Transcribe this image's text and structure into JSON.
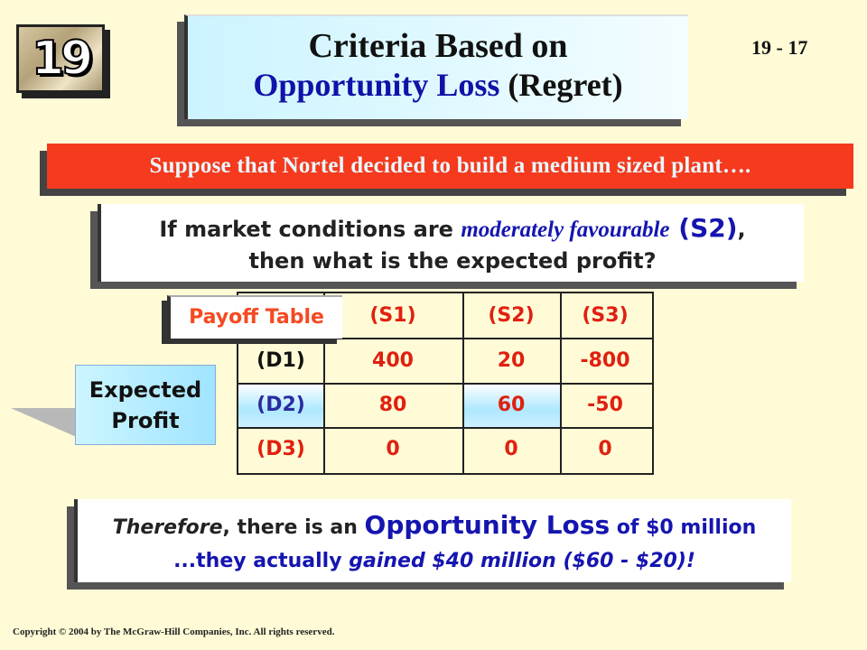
{
  "badge": {
    "chapter": "19"
  },
  "title": {
    "line1": "Criteria Based on",
    "line2_blue": "Opportunity Loss",
    "line2_dark": " (Regret)"
  },
  "slide_number": "19 - 17",
  "banner": "Suppose that Nortel decided to build a medium sized plant….",
  "question": {
    "l1_a": "If market conditions are ",
    "l1_italic": "moderately favourable",
    "l1_s2": " (S2)",
    "l1_end": ",",
    "l2": "then what is the expected profit?"
  },
  "payoff_label": "Payoff Table",
  "table": {
    "columns": [
      "(S1)",
      "(S2)",
      "(S3)"
    ],
    "rows": [
      {
        "label": "(D1)",
        "values": [
          "400",
          "20",
          "-800"
        ]
      },
      {
        "label": "(D2)",
        "values": [
          "80",
          "60",
          "-50"
        ]
      },
      {
        "label": "(D3)",
        "values": [
          "0",
          "0",
          "0"
        ]
      }
    ]
  },
  "expected_profit": {
    "line1": "Expected",
    "line2": "Profit"
  },
  "conclusion": {
    "therefore": "Therefore",
    "l1_b": ", there is an ",
    "opp": "Opportunity Loss",
    "l1_c": " of $0 million",
    "l2_a": "...they actually ",
    "l2_b": "gained $40 million ($60 - $20)",
    "l2_c": "!"
  },
  "copyright": "Copyright  © 2004 by The McGraw-Hill Companies, Inc.   All rights reserved."
}
